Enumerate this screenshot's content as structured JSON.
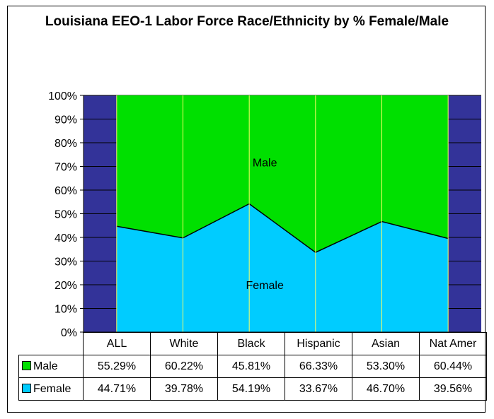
{
  "chart_data": {
    "type": "area",
    "title": "Louisiana EEO-1 Labor Force Race/Ethnicity by % Female/Male",
    "categories": [
      "ALL",
      "White",
      "Black",
      "Hispanic",
      "Asian",
      "Nat Amer"
    ],
    "series": [
      {
        "name": "Male",
        "values": [
          55.29,
          60.22,
          45.81,
          66.33,
          53.3,
          60.44
        ],
        "labels": [
          "55.29%",
          "60.22%",
          "45.81%",
          "66.33%",
          "53.30%",
          "60.44%"
        ],
        "color": "#00e000"
      },
      {
        "name": "Female",
        "values": [
          44.71,
          39.78,
          54.19,
          33.67,
          46.7,
          39.56
        ],
        "labels": [
          "44.71%",
          "39.78%",
          "54.19%",
          "33.67%",
          "46.70%",
          "39.56%"
        ],
        "color": "#00ccff"
      }
    ],
    "stacked": "percent",
    "ylim": [
      0,
      100
    ],
    "yticks": [
      "0%",
      "10%",
      "20%",
      "30%",
      "40%",
      "50%",
      "60%",
      "70%",
      "80%",
      "90%",
      "100%"
    ],
    "annotations": [
      "Male",
      "Female"
    ],
    "plot_background": "#333399",
    "grid": true,
    "legend": "data-table"
  }
}
